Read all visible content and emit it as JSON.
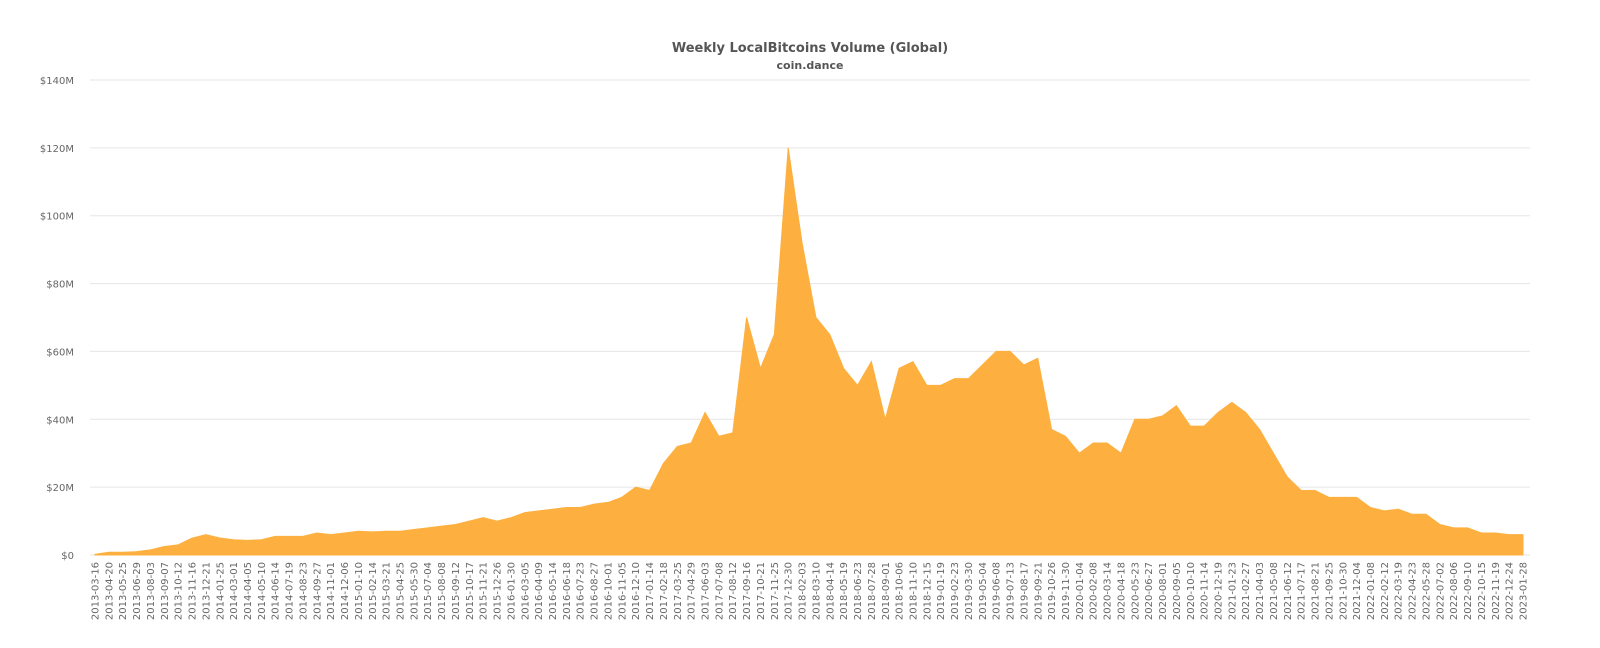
{
  "chart_data": {
    "type": "area",
    "title": "Weekly LocalBitcoins Volume (Global)",
    "subtitle": "coin.dance",
    "categories": [
      "2013-03-16",
      "2013-04-20",
      "2013-05-25",
      "2013-06-29",
      "2013-08-03",
      "2013-09-07",
      "2013-10-12",
      "2013-11-16",
      "2013-12-21",
      "2014-01-25",
      "2014-03-01",
      "2014-04-05",
      "2014-05-10",
      "2014-06-14",
      "2014-07-19",
      "2014-08-23",
      "2014-09-27",
      "2014-11-01",
      "2014-12-06",
      "2015-01-10",
      "2015-02-14",
      "2015-03-21",
      "2015-04-25",
      "2015-05-30",
      "2015-07-04",
      "2015-08-08",
      "2015-09-12",
      "2015-10-17",
      "2015-11-21",
      "2015-12-26",
      "2016-01-30",
      "2016-03-05",
      "2016-04-09",
      "2016-05-14",
      "2016-06-18",
      "2016-07-23",
      "2016-08-27",
      "2016-10-01",
      "2016-11-05",
      "2016-12-10",
      "2017-01-14",
      "2017-02-18",
      "2017-03-25",
      "2017-04-29",
      "2017-06-03",
      "2017-07-08",
      "2017-08-12",
      "2017-09-16",
      "2017-10-21",
      "2017-11-25",
      "2017-12-30",
      "2018-02-03",
      "2018-03-10",
      "2018-04-14",
      "2018-05-19",
      "2018-06-23",
      "2018-07-28",
      "2018-09-01",
      "2018-10-06",
      "2018-11-10",
      "2018-12-15",
      "2019-01-19",
      "2019-02-23",
      "2019-03-30",
      "2019-05-04",
      "2019-06-08",
      "2019-07-13",
      "2019-08-17",
      "2019-09-21",
      "2019-10-26",
      "2019-11-30",
      "2020-01-04",
      "2020-02-08",
      "2020-03-14",
      "2020-04-18",
      "2020-05-23",
      "2020-06-27",
      "2020-08-01",
      "2020-09-05",
      "2020-10-10",
      "2020-11-14",
      "2020-12-19",
      "2021-01-23",
      "2021-02-27",
      "2021-04-03",
      "2021-05-08",
      "2021-06-12",
      "2021-07-17",
      "2021-08-21",
      "2021-09-25",
      "2021-10-30",
      "2021-12-04",
      "2022-01-08",
      "2022-02-12",
      "2022-03-19",
      "2022-04-23",
      "2022-05-28",
      "2022-07-02",
      "2022-08-06",
      "2022-09-10",
      "2022-10-15",
      "2022-11-19",
      "2022-12-24",
      "2023-01-28"
    ],
    "values": [
      0.2,
      0.8,
      0.8,
      1,
      1.5,
      2.5,
      3,
      5,
      6,
      5,
      4.5,
      4.3,
      4.5,
      5.5,
      5.5,
      5.5,
      6.5,
      6,
      6.5,
      7,
      6.8,
      7,
      7,
      7.5,
      8,
      8.5,
      9,
      10,
      11,
      10,
      11,
      12.5,
      13,
      13.5,
      14,
      14,
      15,
      15.5,
      17,
      20,
      19,
      27,
      32,
      33,
      42,
      35,
      36,
      70,
      55,
      65,
      120,
      92,
      70,
      65,
      55,
      50,
      57,
      40,
      55,
      57,
      50,
      50,
      52,
      52,
      56,
      60,
      60,
      56,
      58,
      37,
      35,
      30,
      33,
      33,
      30,
      40,
      40,
      41,
      44,
      38,
      38,
      42,
      45,
      42,
      37,
      30,
      23,
      19,
      19,
      17,
      17,
      17,
      14,
      13,
      13.5,
      12,
      12,
      9,
      8,
      8,
      6.5,
      6.5,
      6,
      6
    ],
    "color": "#fdb03f",
    "ylim": [
      0,
      140
    ],
    "yticks": [
      {
        "value": 0,
        "label": "$0"
      },
      {
        "value": 20,
        "label": "$20M"
      },
      {
        "value": 40,
        "label": "$40M"
      },
      {
        "value": 60,
        "label": "$60M"
      },
      {
        "value": 80,
        "label": "$80M"
      },
      {
        "value": 100,
        "label": "$100M"
      },
      {
        "value": 120,
        "label": "$120M"
      },
      {
        "value": 140,
        "label": "$140M"
      }
    ],
    "grid": true
  }
}
